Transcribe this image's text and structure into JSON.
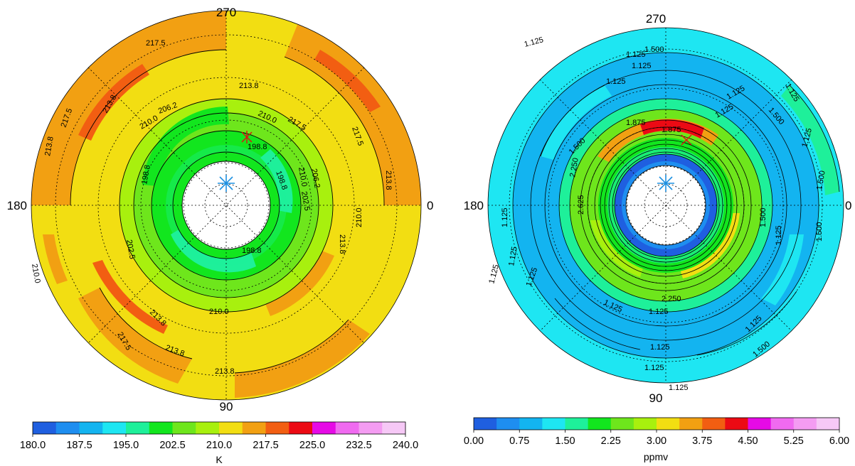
{
  "chart_data": [
    {
      "type": "heatmap",
      "projection": "polar",
      "angle_labels": [
        "270",
        "180",
        "0",
        "90"
      ],
      "contour_labels": [
        "217.5",
        "213.8",
        "210.0",
        "206.2",
        "198.8",
        "202.5"
      ],
      "colorbar": {
        "ticks": [
          "180.0",
          "187.5",
          "195.0",
          "202.5",
          "210.0",
          "217.5",
          "225.0",
          "232.5",
          "240.0"
        ],
        "label": "K",
        "range": [
          180.0,
          240.0
        ],
        "colors": [
          "#1f5fe0",
          "#1e8ef0",
          "#13b4f0",
          "#1ee6f2",
          "#1ef09a",
          "#12e61e",
          "#6ee61c",
          "#a8f00e",
          "#f2de12",
          "#f2a012",
          "#f25e12",
          "#ec0a14",
          "#e60ae6",
          "#f06af0",
          "#f49cf2",
          "#f6c8f6"
        ]
      },
      "marker_color": "#1e90e0"
    },
    {
      "type": "heatmap",
      "projection": "polar",
      "angle_labels": [
        "270",
        "180",
        "0",
        "90"
      ],
      "contour_labels": [
        "1.125",
        "1.500",
        "1.875",
        "2.250",
        "2.625"
      ],
      "colorbar": {
        "ticks": [
          "0.00",
          "0.75",
          "1.50",
          "2.25",
          "3.00",
          "3.75",
          "4.50",
          "5.25",
          "6.00"
        ],
        "label": "ppmv",
        "range": [
          0.0,
          6.0
        ],
        "colors": [
          "#1f5fe0",
          "#1e8ef0",
          "#13b4f0",
          "#1ee6f2",
          "#1ef09a",
          "#12e61e",
          "#6ee61c",
          "#a8f00e",
          "#f2de12",
          "#f2a012",
          "#f25e12",
          "#ec0a14",
          "#e60ae6",
          "#f06af0",
          "#f49cf2",
          "#f6c8f6"
        ]
      },
      "marker_color": "#1e90e0"
    }
  ]
}
